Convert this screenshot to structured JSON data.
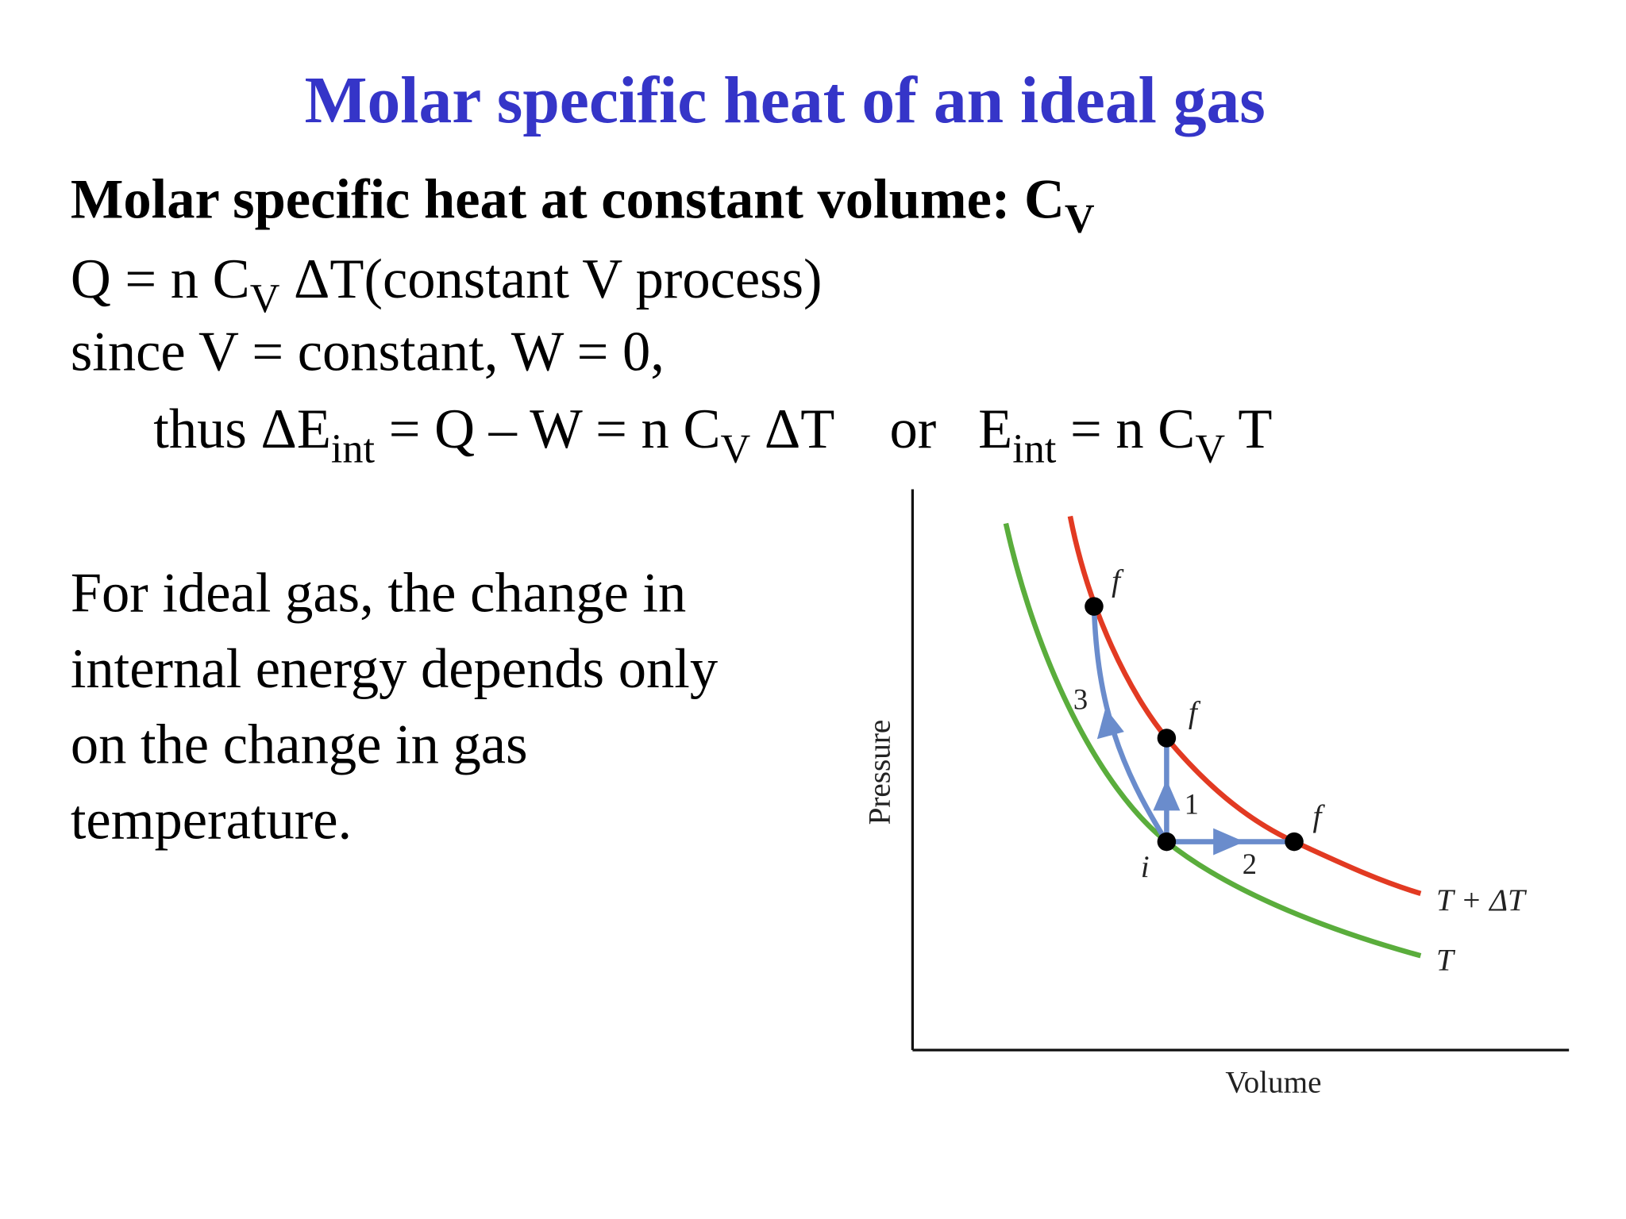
{
  "title": "Molar specific heat of an ideal gas",
  "heading": [
    {
      "text": "Molar specific heat at constant volume: C"
    },
    {
      "sub": "V"
    }
  ],
  "lines": [
    [
      {
        "text": "Q = n C"
      },
      {
        "sub": "V"
      },
      {
        "text": " ΔT(constant V process)"
      }
    ],
    [
      {
        "text": "since V = constant, W = 0,"
      }
    ],
    [
      {
        "text": "thus ΔE"
      },
      {
        "sub": "int"
      },
      {
        "text": " = Q – W = n C"
      },
      {
        "sub": "V"
      },
      {
        "text": " ΔT    or   E"
      },
      {
        "sub": "int"
      },
      {
        "text": " = n C"
      },
      {
        "sub": "V"
      },
      {
        "text": " T"
      }
    ]
  ],
  "paragraph": [
    "For ideal gas, the change in",
    "internal energy depends only",
    "on the change in gas",
    "temperature."
  ],
  "diagram": {
    "y_axis_label": "Pressure",
    "x_axis_label": "Volume",
    "curves": [
      {
        "label": "T + ΔT"
      },
      {
        "label": "T"
      }
    ],
    "point_labels": [
      "f",
      "f",
      "f",
      "i"
    ],
    "path_labels": [
      "3",
      "1",
      "2"
    ]
  }
}
